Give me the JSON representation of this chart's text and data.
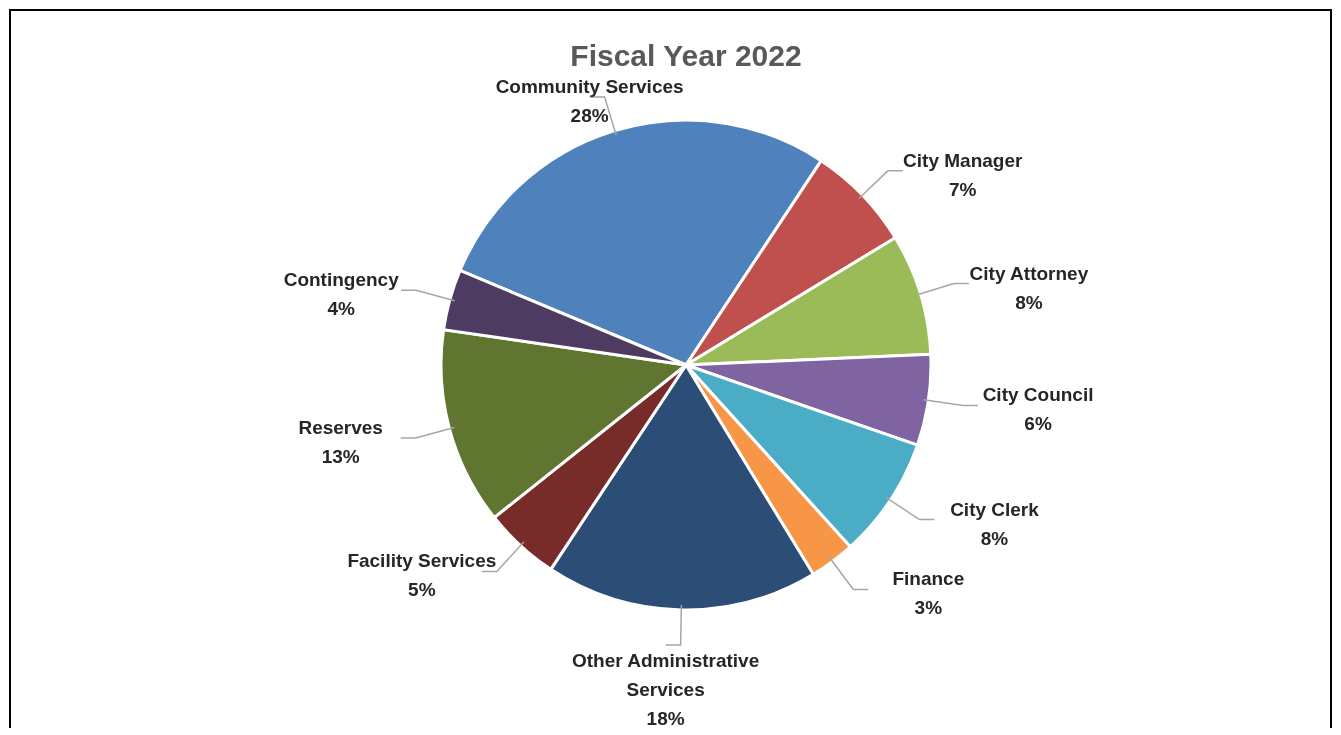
{
  "chart_data": {
    "type": "pie",
    "title": "Fiscal Year 2022",
    "categories": [
      "Community Services",
      "City Manager",
      "City Attorney",
      "City Council",
      "City Clerk",
      "Finance",
      "Other Administrative Services",
      "Facility Services",
      "Reserves",
      "Contingency"
    ],
    "values": [
      28,
      7,
      8,
      6,
      8,
      3,
      18,
      5,
      13,
      4
    ],
    "value_labels": [
      "28%",
      "7%",
      "8%",
      "6%",
      "8%",
      "3%",
      "18%",
      "5%",
      "13%",
      "4%"
    ],
    "colors": [
      "#4f81bd",
      "#c0504d",
      "#9bbb59",
      "#8064a2",
      "#4bacc6",
      "#f79646",
      "#2c4d75",
      "#772c2a",
      "#5f7530",
      "#4d3b62"
    ],
    "legend": false
  }
}
